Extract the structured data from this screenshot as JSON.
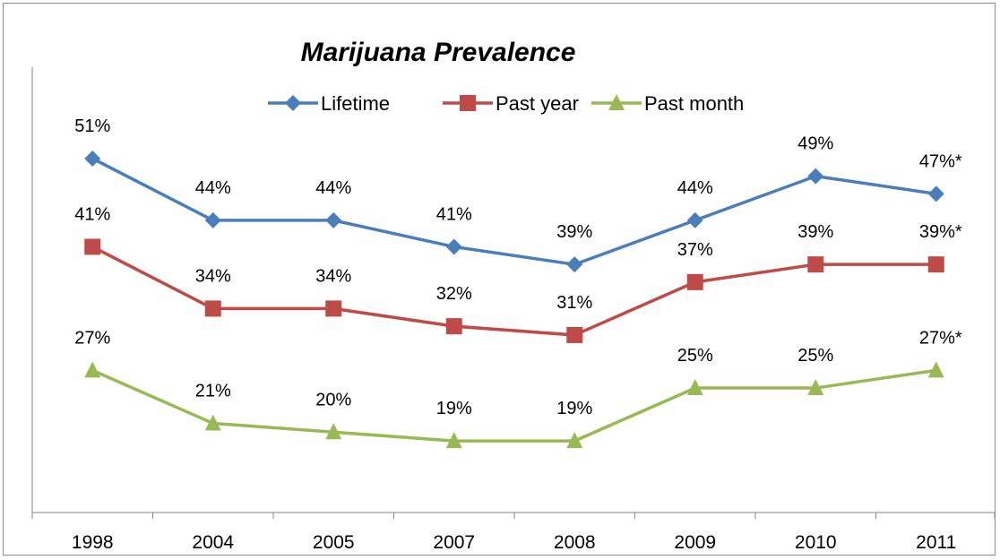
{
  "chart_data": {
    "type": "line",
    "title": "Marijuana Prevalence",
    "xlabel": "",
    "ylabel": "",
    "categories": [
      "1998",
      "2004",
      "2005",
      "2007",
      "2008",
      "2009",
      "2010",
      "2011"
    ],
    "ylim": [
      0,
      70
    ],
    "grid": false,
    "legend_position": "top",
    "series": [
      {
        "name": "Lifetime",
        "color": "#4a7ebb",
        "marker": "diamond",
        "values": [
          51,
          44,
          44,
          41,
          39,
          44,
          49,
          47
        ],
        "labels": [
          "51%",
          "44%",
          "44%",
          "41%",
          "39%",
          "44%",
          "49%",
          "47%*"
        ]
      },
      {
        "name": "Past year",
        "color": "#be4b48",
        "marker": "square",
        "values": [
          41,
          34,
          34,
          32,
          31,
          37,
          39,
          39
        ],
        "labels": [
          "41%",
          "34%",
          "34%",
          "32%",
          "31%",
          "37%",
          "39%",
          "39%*"
        ]
      },
      {
        "name": "Past month",
        "color": "#98b954",
        "marker": "triangle",
        "values": [
          27,
          21,
          20,
          19,
          19,
          25,
          25,
          27
        ],
        "labels": [
          "27%",
          "21%",
          "20%",
          "19%",
          "19%",
          "25%",
          "25%",
          "27%*"
        ]
      }
    ]
  }
}
